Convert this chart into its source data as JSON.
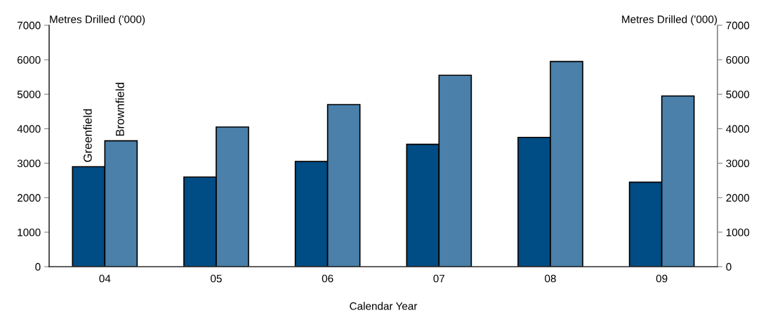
{
  "chart_data": {
    "type": "bar",
    "categories": [
      "04",
      "05",
      "06",
      "07",
      "08",
      "09"
    ],
    "series": [
      {
        "name": "Greenfield",
        "color": "#004c84",
        "values": [
          2900,
          2600,
          3050,
          3550,
          3750,
          2450
        ]
      },
      {
        "name": "Brownfield",
        "color": "#4a80aa",
        "values": [
          3650,
          4050,
          4700,
          5550,
          5950,
          4950
        ]
      }
    ],
    "xlabel": "Calendar Year",
    "ylabel": "Metres Drilled ('000)",
    "y2label": "Metres Drilled ('000)",
    "ylim": [
      0,
      7000
    ],
    "yticks": [
      0,
      1000,
      2000,
      3000,
      4000,
      5000,
      6000,
      7000
    ],
    "y2lim": [
      0,
      7000
    ],
    "y2ticks": [
      0,
      1000,
      2000,
      3000,
      4000,
      5000,
      6000,
      7000
    ],
    "grid": false,
    "legend": false
  }
}
